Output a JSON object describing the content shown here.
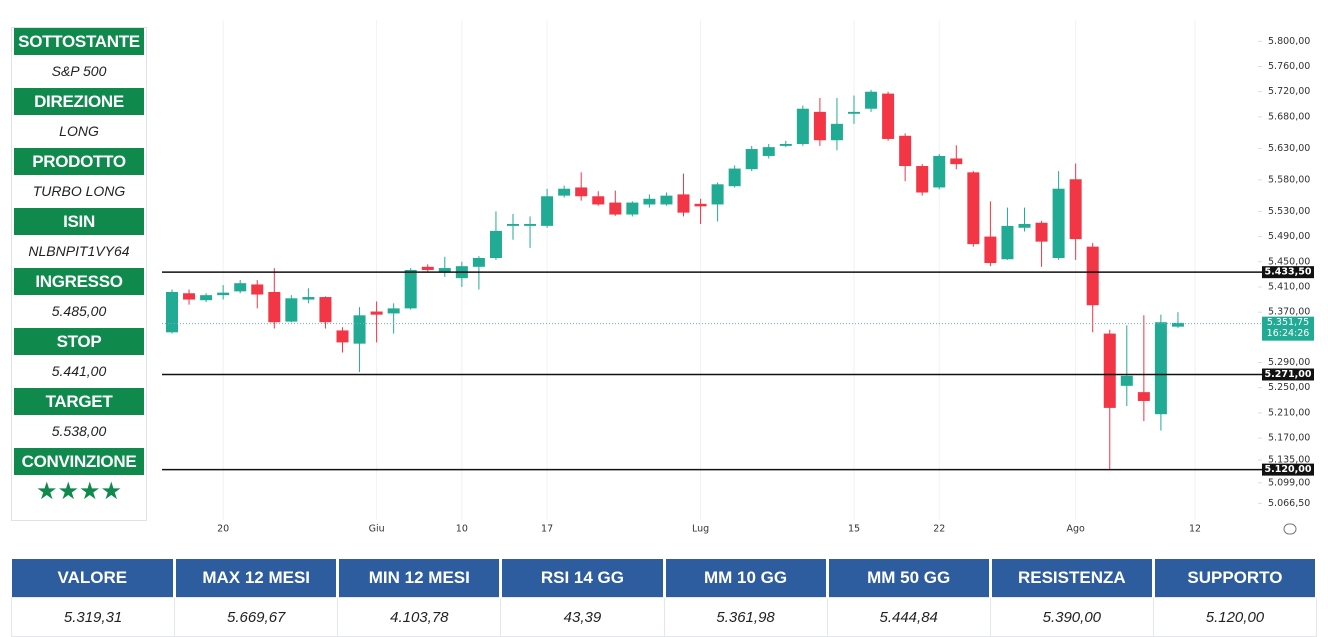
{
  "sidebar": [
    {
      "label": "SOTTOSTANTE",
      "value": "S&P 500"
    },
    {
      "label": "DIREZIONE",
      "value": "LONG"
    },
    {
      "label": "PRODOTTO",
      "value": "TURBO LONG"
    },
    {
      "label": "ISIN",
      "value": "NLBNPIT1VY64"
    },
    {
      "label": "INGRESSO",
      "value": "5.485,00"
    },
    {
      "label": "STOP",
      "value": "5.441,00"
    },
    {
      "label": "TARGET",
      "value": "5.538,00"
    },
    {
      "label": "CONVINZIONE",
      "value": "★★★★"
    }
  ],
  "chart_data": {
    "type": "candlestick",
    "ylim": [
      5040,
      5818
    ],
    "yticks": [
      {
        "value": 5800,
        "label": "5.800,00"
      },
      {
        "value": 5760,
        "label": "5.760,00"
      },
      {
        "value": 5720,
        "label": "5.720,00"
      },
      {
        "value": 5680,
        "label": "5.680,00"
      },
      {
        "value": 5630,
        "label": "5.630,00"
      },
      {
        "value": 5580,
        "label": "5.580,00"
      },
      {
        "value": 5530,
        "label": "5.530,00"
      },
      {
        "value": 5490,
        "label": "5.490,00"
      },
      {
        "value": 5450,
        "label": "5.450,00"
      },
      {
        "value": 5410,
        "label": "5.410,00"
      },
      {
        "value": 5370,
        "label": "5.370,00"
      },
      {
        "value": 5290,
        "label": "5.290,00"
      },
      {
        "value": 5250,
        "label": "5.250,00"
      },
      {
        "value": 5210,
        "label": "5.210,00"
      },
      {
        "value": 5170,
        "label": "5.170,00"
      },
      {
        "value": 5135,
        "label": "5.135,00"
      },
      {
        "value": 5099,
        "label": "5.099,00"
      },
      {
        "value": 5066.5,
        "label": "5.066,50"
      }
    ],
    "xticks": [
      {
        "value": 3,
        "label": "20"
      },
      {
        "value": 12,
        "label": "Giu"
      },
      {
        "value": 17,
        "label": "10"
      },
      {
        "value": 22,
        "label": "17"
      },
      {
        "value": 31,
        "label": "Lug"
      },
      {
        "value": 40,
        "label": "15"
      },
      {
        "value": 45,
        "label": "22"
      },
      {
        "value": 53,
        "label": "Ago"
      },
      {
        "value": 60,
        "label": "12"
      }
    ],
    "grid": true,
    "up_color": "#22ab94",
    "down_color": "#f23645",
    "open": [
      5338,
      5400,
      5389,
      5397,
      5403,
      5414,
      5402,
      5355,
      5390,
      5394,
      5341,
      5320,
      5371,
      5368,
      5376,
      5442,
      5434,
      5424,
      5442,
      5456,
      5507,
      5507,
      5507,
      5555,
      5568,
      5554,
      5544,
      5525,
      5541,
      5541,
      5557,
      5542,
      5541,
      5570,
      5597,
      5618,
      5634,
      5637,
      5688,
      5643,
      5685,
      5693,
      5717,
      5650,
      5602,
      5568,
      5614,
      5592,
      5490,
      5454,
      5504,
      5512,
      5456,
      5581,
      5474,
      5336,
      5253,
      5243,
      5208,
      5347
    ],
    "high": [
      5406,
      5406,
      5400,
      5413,
      5421,
      5421,
      5440,
      5397,
      5408,
      5395,
      5346,
      5378,
      5387,
      5384,
      5440,
      5446,
      5458,
      5450,
      5459,
      5530,
      5526,
      5522,
      5566,
      5571,
      5592,
      5562,
      5563,
      5546,
      5557,
      5560,
      5590,
      5550,
      5576,
      5603,
      5634,
      5637,
      5642,
      5698,
      5710,
      5710,
      5714,
      5723,
      5720,
      5654,
      5605,
      5621,
      5635,
      5594,
      5546,
      5536,
      5536,
      5515,
      5594,
      5606,
      5480,
      5342,
      5349,
      5365,
      5366,
      5370
    ],
    "low": [
      5336,
      5382,
      5386,
      5390,
      5400,
      5376,
      5344,
      5354,
      5384,
      5344,
      5306,
      5275,
      5322,
      5336,
      5374,
      5434,
      5426,
      5410,
      5406,
      5453,
      5485,
      5472,
      5504,
      5552,
      5547,
      5539,
      5523,
      5522,
      5536,
      5539,
      5522,
      5510,
      5514,
      5568,
      5594,
      5614,
      5632,
      5634,
      5634,
      5627,
      5669,
      5688,
      5642,
      5578,
      5555,
      5565,
      5597,
      5474,
      5443,
      5453,
      5498,
      5442,
      5453,
      5453,
      5338,
      5120,
      5221,
      5197,
      5182,
      5345
    ],
    "close": [
      5402,
      5390,
      5397,
      5401,
      5416,
      5398,
      5354,
      5392,
      5394,
      5354,
      5322,
      5365,
      5366,
      5376,
      5437,
      5437,
      5440,
      5443,
      5456,
      5499,
      5510,
      5510,
      5554,
      5566,
      5554,
      5541,
      5525,
      5544,
      5550,
      5555,
      5528,
      5538,
      5573,
      5598,
      5629,
      5632,
      5637,
      5693,
      5643,
      5669,
      5688,
      5720,
      5645,
      5602,
      5560,
      5618,
      5605,
      5478,
      5448,
      5507,
      5510,
      5482,
      5566,
      5486,
      5381,
      5218,
      5269,
      5229,
      5354,
      5353
    ],
    "hlines": [
      {
        "value": 5433.5,
        "label": "5.433,50"
      },
      {
        "value": 5271,
        "label": "5.271,00"
      },
      {
        "value": 5120,
        "label": "5.120,00"
      }
    ],
    "last_price": {
      "value": 5351.75,
      "label": "5.351,75",
      "countdown": "16:24:26"
    }
  },
  "table": {
    "headers": [
      "VALORE",
      "MAX 12 MESI",
      "MIN 12 MESI",
      "RSI 14 GG",
      "MM 10 GG",
      "MM 50 GG",
      "RESISTENZA",
      "SUPPORTO"
    ],
    "rows": [
      [
        "5.319,31",
        "5.669,67",
        "4.103,78",
        "43,39",
        "5.361,98",
        "5.444,84",
        "5.390,00",
        "5.120,00"
      ]
    ]
  }
}
